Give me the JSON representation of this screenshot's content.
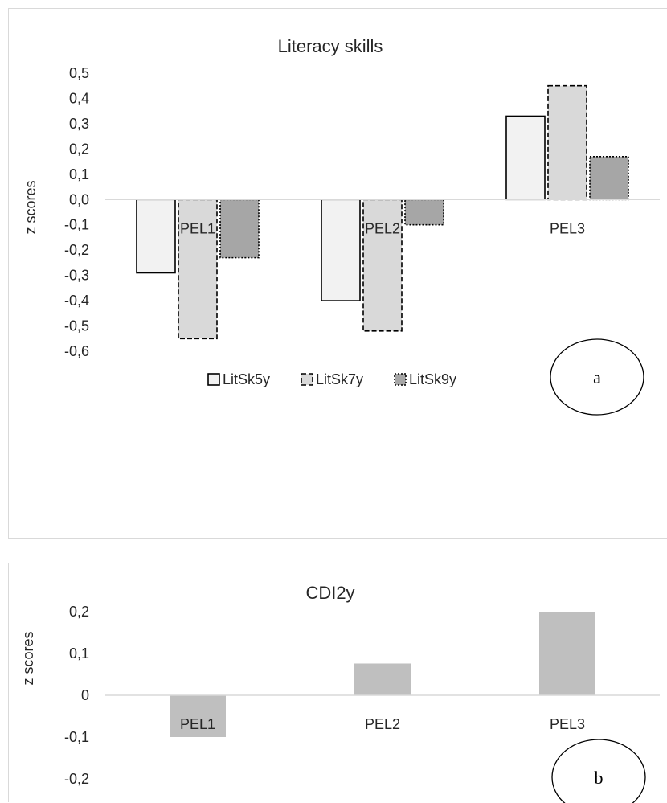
{
  "chart_data": [
    {
      "type": "bar",
      "title": "Literacy skills",
      "xlabel": "",
      "ylabel": "z scores",
      "categories": [
        "PEL1",
        "PEL2",
        "PEL3"
      ],
      "series": [
        {
          "name": "LitSk5y",
          "values": [
            -0.29,
            -0.4,
            0.33
          ],
          "color": "#f2f2f2",
          "stroke": "#000000",
          "dash": ""
        },
        {
          "name": "LitSk7y",
          "values": [
            -0.55,
            -0.52,
            0.45
          ],
          "color": "#d9d9d9",
          "stroke": "#000000",
          "dash": "6,3"
        },
        {
          "name": "LitSk9y",
          "values": [
            -0.23,
            -0.1,
            0.17
          ],
          "color": "#a6a6a6",
          "stroke": "#000000",
          "dash": "2,2"
        }
      ],
      "ylim": [
        -0.6,
        0.5
      ],
      "yticks": [
        "0,5",
        "0,4",
        "0,3",
        "0,2",
        "0,1",
        "0,0",
        "-0,1",
        "-0,2",
        "-0,3",
        "-0,4",
        "-0,5",
        "-0,6"
      ],
      "ytick_values": [
        0.5,
        0.4,
        0.3,
        0.2,
        0.1,
        0.0,
        -0.1,
        -0.2,
        -0.3,
        -0.4,
        -0.5,
        -0.6
      ],
      "legend": "bottom",
      "grid": false,
      "panel_label": "a"
    },
    {
      "type": "bar",
      "title": "CDI2y",
      "xlabel": "",
      "ylabel": "z scores",
      "categories": [
        "PEL1",
        "PEL2",
        "PEL3"
      ],
      "values": [
        -0.1,
        0.076,
        0.2
      ],
      "color": "#bfbfbf",
      "ylim": [
        -0.2,
        0.2
      ],
      "yticks": [
        "0,2",
        "0,1",
        "0",
        "-0,1",
        "-0,2"
      ],
      "ytick_values": [
        0.2,
        0.1,
        0.0,
        -0.1,
        -0.2
      ],
      "grid": false,
      "panel_label": "b"
    }
  ]
}
